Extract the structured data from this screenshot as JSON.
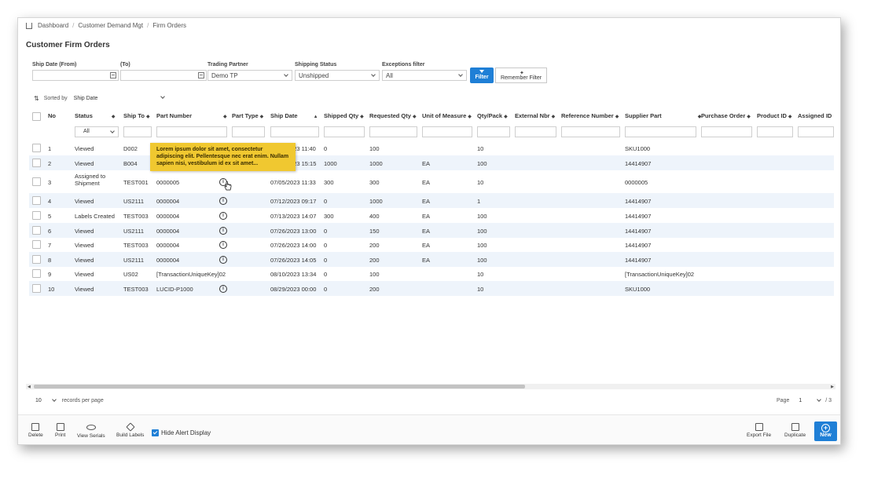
{
  "breadcrumb": {
    "items": [
      "Dashboard",
      "Customer Demand Mgt",
      "Firm Orders"
    ]
  },
  "page_title": "Customer Firm Orders",
  "filters": {
    "ship_date_from_label": "Ship Date (From)",
    "ship_date_from_value": "",
    "ship_date_to_label": "(To)",
    "ship_date_to_value": "",
    "trading_partner_label": "Trading Partner",
    "trading_partner_value": "Demo TP",
    "shipping_status_label": "Shipping Status",
    "shipping_status_value": "Unshipped",
    "exceptions_label": "Exceptions filter",
    "exceptions_value": "All",
    "filter_button": "Filter",
    "remember_button": "Remember Filter"
  },
  "sort": {
    "label": "Sorted by",
    "value": "Ship Date"
  },
  "columns": [
    "No",
    "Status",
    "Ship To",
    "Part Number",
    "Part Type",
    "Ship Date",
    "Shipped Qty",
    "Requested Qty",
    "Unit of Measure",
    "Qty/Pack",
    "External Nbr",
    "Reference Number",
    "Supplier Part",
    "Purchase Order",
    "Product ID",
    "Assigned ID"
  ],
  "status_filter": "All",
  "rows": [
    {
      "no": "1",
      "status": "Viewed",
      "ship_to": "D002",
      "part_number": "",
      "ship_date": "07/04/2023 11:40",
      "shipped_qty": "0",
      "requested_qty": "100",
      "uom": "",
      "qty_pack": "10",
      "supplier_part": "SKU1000"
    },
    {
      "no": "2",
      "status": "Viewed",
      "ship_to": "B004",
      "part_number": "",
      "ship_date": "07/04/2023 15:15",
      "shipped_qty": "1000",
      "requested_qty": "1000",
      "uom": "EA",
      "qty_pack": "100",
      "supplier_part": "14414907"
    },
    {
      "no": "3",
      "status": "Assigned to Shipment",
      "ship_to": "TEST001",
      "part_number": "0000005",
      "ship_date": "07/05/2023 11:33",
      "shipped_qty": "300",
      "requested_qty": "300",
      "uom": "EA",
      "qty_pack": "10",
      "supplier_part": "0000005"
    },
    {
      "no": "4",
      "status": "Viewed",
      "ship_to": "US2111",
      "part_number": "0000004",
      "ship_date": "07/12/2023 09:17",
      "shipped_qty": "0",
      "requested_qty": "1000",
      "uom": "EA",
      "qty_pack": "1",
      "supplier_part": "14414907"
    },
    {
      "no": "5",
      "status": "Labels Created",
      "ship_to": "TEST003",
      "part_number": "0000004",
      "ship_date": "07/13/2023 14:07",
      "shipped_qty": "300",
      "requested_qty": "400",
      "uom": "EA",
      "qty_pack": "100",
      "supplier_part": "14414907"
    },
    {
      "no": "6",
      "status": "Viewed",
      "ship_to": "US2111",
      "part_number": "0000004",
      "ship_date": "07/26/2023 13:00",
      "shipped_qty": "0",
      "requested_qty": "150",
      "uom": "EA",
      "qty_pack": "100",
      "supplier_part": "14414907"
    },
    {
      "no": "7",
      "status": "Viewed",
      "ship_to": "TEST003",
      "part_number": "0000004",
      "ship_date": "07/26/2023 14:00",
      "shipped_qty": "0",
      "requested_qty": "200",
      "uom": "EA",
      "qty_pack": "100",
      "supplier_part": "14414907"
    },
    {
      "no": "8",
      "status": "Viewed",
      "ship_to": "US2111",
      "part_number": "0000004",
      "ship_date": "07/26/2023 14:05",
      "shipped_qty": "0",
      "requested_qty": "200",
      "uom": "EA",
      "qty_pack": "100",
      "supplier_part": "14414907"
    },
    {
      "no": "9",
      "status": "Viewed",
      "ship_to": "US02",
      "part_number": "[TransactionUniqueKey]02",
      "ship_date": "08/10/2023 13:34",
      "shipped_qty": "0",
      "requested_qty": "100",
      "uom": "",
      "qty_pack": "10",
      "supplier_part": "[TransactionUniqueKey]02"
    },
    {
      "no": "10",
      "status": "Viewed",
      "ship_to": "TEST003",
      "part_number": "LUCID-P1000",
      "ship_date": "08/29/2023 00:00",
      "shipped_qty": "0",
      "requested_qty": "200",
      "uom": "",
      "qty_pack": "10",
      "supplier_part": "SKU1000"
    }
  ],
  "tooltip": "Lorem ipsum dolor sit amet, consectetur adipiscing elit. Pellentesque nec erat enim. Nullam sapien nisi, vestibulum id ex sit amet...",
  "pager": {
    "per_page_value": "10",
    "per_page_label": "records per page",
    "page_label": "Page",
    "page_value": "1",
    "page_total": "/ 3"
  },
  "toolbar": {
    "delete": "Delete",
    "print": "Print",
    "view_serials": "View Serials",
    "build_labels": "Build Labels",
    "hide_alert": "Hide Alert Display",
    "export_file": "Export File",
    "duplicate": "Duplicate",
    "new": "New"
  },
  "colors": {
    "accent": "#1f7fd6",
    "tooltip": "#f0c830",
    "row_alt": "#eef4fb"
  }
}
